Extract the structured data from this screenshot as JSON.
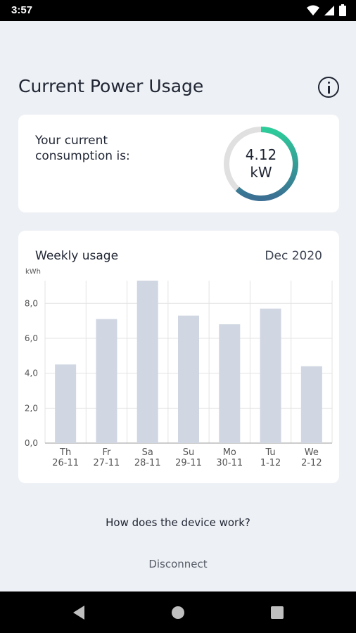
{
  "status_bar": {
    "time": "3:57"
  },
  "header": {
    "title": "Current Power Usage"
  },
  "consumption": {
    "label": "Your current consumption is:",
    "value": "4.12",
    "unit": "kW",
    "gauge_fraction": 0.62
  },
  "weekly": {
    "title": "Weekly usage",
    "period": "Dec 2020"
  },
  "chart_data": {
    "type": "bar",
    "ylabel": "kWh",
    "ylim": [
      0,
      9.3
    ],
    "yticks": [
      "0,0",
      "2,0",
      "4,0",
      "6,0",
      "8,0"
    ],
    "ytick_values": [
      0,
      2,
      4,
      6,
      8
    ],
    "categories": [
      {
        "day": "Th",
        "date": "26-11"
      },
      {
        "day": "Fr",
        "date": "27-11"
      },
      {
        "day": "Sa",
        "date": "28-11"
      },
      {
        "day": "Su",
        "date": "29-11"
      },
      {
        "day": "Mo",
        "date": "30-11"
      },
      {
        "day": "Tu",
        "date": "1-12"
      },
      {
        "day": "We",
        "date": "2-12"
      }
    ],
    "values": [
      4.5,
      7.1,
      9.3,
      7.3,
      6.8,
      7.7,
      4.4
    ],
    "grid": true,
    "bar_color": "#d0d6e2"
  },
  "actions": {
    "how_it_works": "How does the device work?",
    "disconnect": "Disconnect"
  },
  "colors": {
    "gauge_start": "#2ecc9a",
    "gauge_end": "#3b6f93",
    "gauge_track": "#e0e0e0"
  },
  "icons": {
    "info": "info-icon",
    "wifi": "wifi-icon",
    "signal": "signal-icon",
    "battery": "battery-icon",
    "back": "back-icon",
    "home": "home-icon",
    "recents": "recents-icon"
  }
}
